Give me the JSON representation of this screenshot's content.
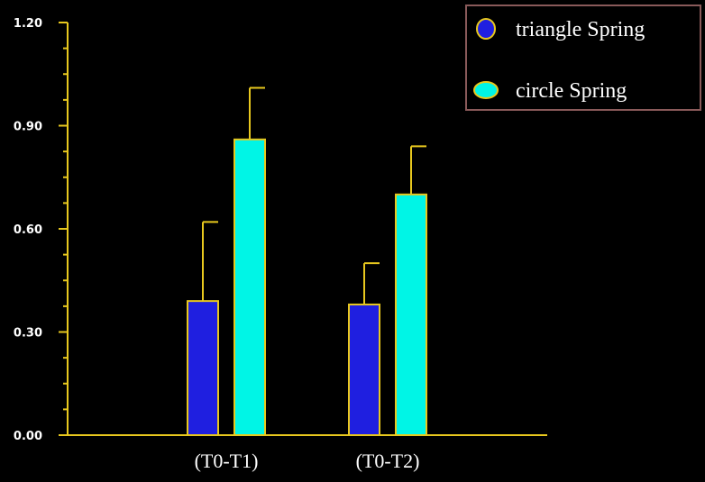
{
  "chart_data": {
    "type": "bar",
    "categories": [
      "(T0-T1)",
      "(T0-T2)"
    ],
    "series": [
      {
        "name": "triangle Spring",
        "values": [
          0.39,
          0.38
        ],
        "error": [
          0.23,
          0.12
        ],
        "color": "#1f1fe0"
      },
      {
        "name": "circle Spring",
        "values": [
          0.86,
          0.7
        ],
        "error": [
          0.15,
          0.14
        ],
        "color": "#00f5e6"
      }
    ],
    "yticks": [
      "0.00",
      "0.30",
      "0.60",
      "0.90",
      "1.20"
    ],
    "ylim": [
      0,
      1.2
    ],
    "axis_color": "#e8c81e",
    "legend_position": "top-right",
    "grid": false
  }
}
